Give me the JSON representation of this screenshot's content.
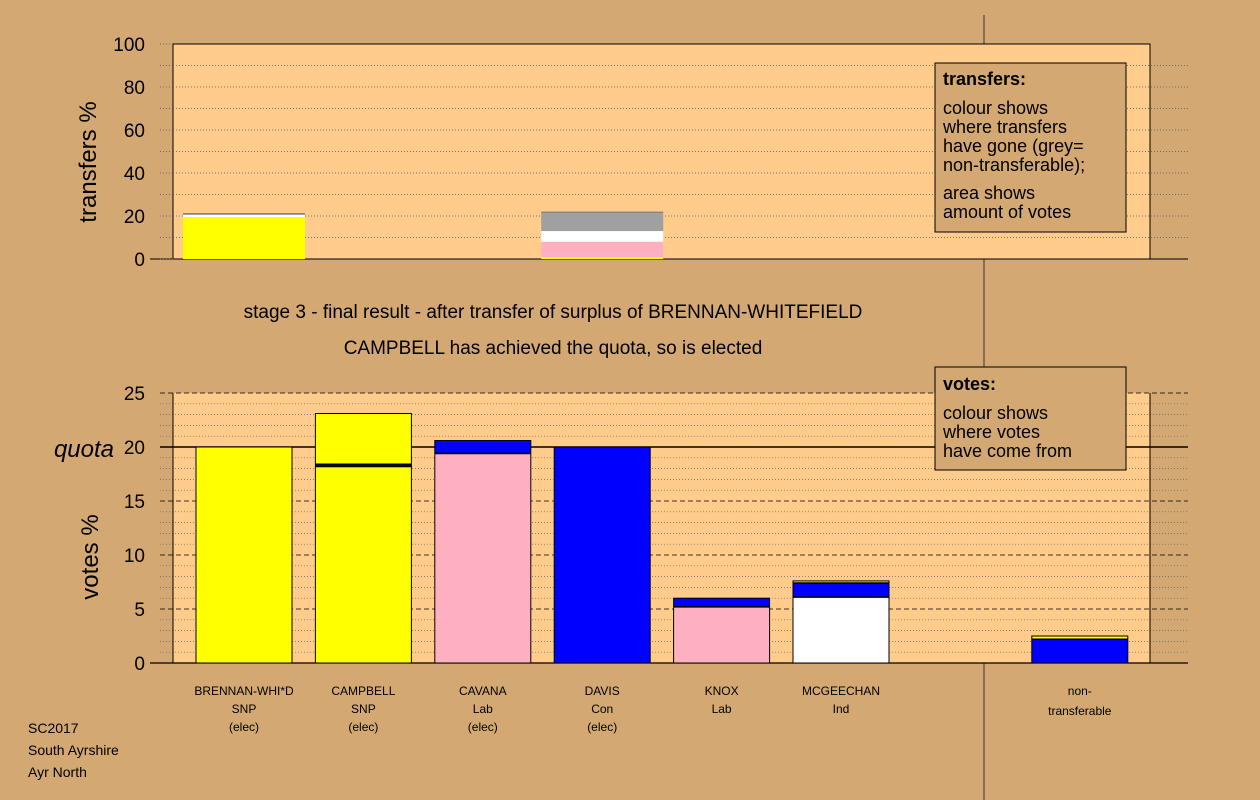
{
  "colors": {
    "background": "#d4a872",
    "plot_background": "#ffcc8c",
    "SNP": "#ffff00",
    "Lab": "#ffb0c0",
    "Con": "#0000ff",
    "Ind": "#ffffff",
    "non_transferable": "#a0a0a0"
  },
  "stage_text": {
    "line1": "stage 3 - final result - after transfer of surplus of BRENNAN-WHITEFIELD",
    "line2": "CAMPBELL has achieved the quota, so is elected"
  },
  "legend_transfers": {
    "title": "transfers:",
    "lines1": [
      "colour shows",
      "where transfers",
      "have gone (grey=",
      "non-transferable);"
    ],
    "lines2": [
      "area shows",
      "amount of votes"
    ]
  },
  "legend_votes": {
    "title": "votes:",
    "lines": [
      "colour shows",
      "where votes",
      "have come from"
    ]
  },
  "footer": [
    "SC2017",
    "South Ayrshire",
    "Ayr North"
  ],
  "chart_data": [
    {
      "type": "bar",
      "stacked": true,
      "ylabel": "transfers %",
      "ylim": [
        0,
        100
      ],
      "yticks": [
        0,
        20,
        40,
        60,
        80,
        100
      ],
      "grid": true,
      "legend_placement": "top-right",
      "bars": [
        {
          "slot": 0,
          "segments": [
            {
              "party": "SNP",
              "value": 19.5
            },
            {
              "party": "Ind",
              "value": 1.0
            },
            {
              "party": "non_transferable",
              "value": 0.6
            }
          ]
        },
        {
          "slot": 3,
          "segments": [
            {
              "party": "SNP",
              "value": 0.8
            },
            {
              "party": "Lab",
              "value": 7.2
            },
            {
              "party": "Ind",
              "value": 5.0
            },
            {
              "party": "non_transferable",
              "value": 8.8
            }
          ]
        }
      ]
    },
    {
      "type": "bar",
      "stacked": true,
      "ylabel": "votes %",
      "quota_label": "quota",
      "quota": 20,
      "ylim": [
        0,
        25
      ],
      "yticks": [
        0,
        5,
        10,
        15,
        20,
        25
      ],
      "grid": true,
      "legend_placement": "top-right",
      "categories": [
        {
          "name": "BRENNAN-WHI*D",
          "party": "SNP",
          "status": "(elec)"
        },
        {
          "name": "CAMPBELL",
          "party": "SNP",
          "status": "(elec)"
        },
        {
          "name": "CAVANA",
          "party": "Lab",
          "status": "(elec)"
        },
        {
          "name": "DAVIS",
          "party": "Con",
          "status": "(elec)"
        },
        {
          "name": "KNOX",
          "party": "Lab",
          "status": ""
        },
        {
          "name": "MCGEECHAN",
          "party": "Ind",
          "status": ""
        }
      ],
      "non_transferable_label": [
        "non-",
        "transferable"
      ],
      "bars": [
        {
          "slot": 0,
          "segments": [
            {
              "party": "SNP",
              "value": 20.0
            }
          ]
        },
        {
          "slot": 1,
          "segments": [
            {
              "party": "SNP",
              "value": 18.2
            },
            {
              "party": "Con",
              "value": 0.2
            },
            {
              "party": "SNP",
              "value": 4.7
            }
          ]
        },
        {
          "slot": 2,
          "segments": [
            {
              "party": "Lab",
              "value": 19.4
            },
            {
              "party": "Con",
              "value": 1.2
            }
          ]
        },
        {
          "slot": 3,
          "segments": [
            {
              "party": "Con",
              "value": 20.0
            }
          ]
        },
        {
          "slot": 4,
          "segments": [
            {
              "party": "Lab",
              "value": 5.2
            },
            {
              "party": "Con",
              "value": 0.8
            }
          ]
        },
        {
          "slot": 5,
          "segments": [
            {
              "party": "Ind",
              "value": 6.1
            },
            {
              "party": "Con",
              "value": 1.3
            },
            {
              "party": "SNP",
              "value": 0.2
            }
          ]
        },
        {
          "slot": 7,
          "segments": [
            {
              "party": "Con",
              "value": 2.2
            },
            {
              "party": "SNP",
              "value": 0.3
            }
          ]
        }
      ]
    }
  ]
}
